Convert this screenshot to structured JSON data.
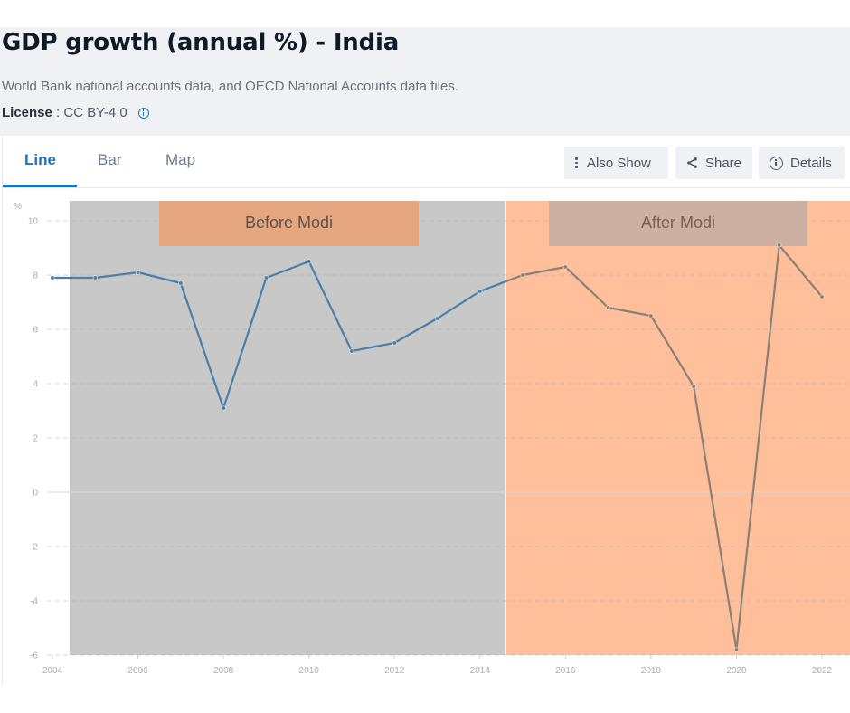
{
  "header": {
    "title": "GDP growth (annual %) - India",
    "source": "World Bank national accounts data, and OECD National Accounts data files.",
    "license_label": "License",
    "license_sep": " : ",
    "license_value": "CC BY-4.0",
    "license_icon": "info-icon"
  },
  "tabs": [
    {
      "label": "Line",
      "active": true
    },
    {
      "label": "Bar",
      "active": false
    },
    {
      "label": "Map",
      "active": false
    }
  ],
  "actions": {
    "also_show": {
      "label": "Also Show",
      "icon": "kebab-icon"
    },
    "share": {
      "label": "Share",
      "icon": "share-icon"
    },
    "details": {
      "label": "Details",
      "icon": "info-icon"
    }
  },
  "colors": {
    "accent": "#1f73c1",
    "header_bg": "#f0f1f5",
    "before_region": "#c8c8c8",
    "after_region": "#febf9a",
    "before_label_bg": "#e6a680",
    "after_label_bg": "#cdb0a2",
    "line_before": "#4a7fa8",
    "line_after": "#8a8079"
  },
  "chart_data": {
    "type": "line",
    "title": "GDP growth (annual %) - India",
    "ylabel": "%",
    "xlabel": "",
    "ylim": [
      -6,
      10
    ],
    "xlim": [
      2004,
      2022
    ],
    "yticks": [
      10,
      8,
      6,
      4,
      2,
      0,
      -2,
      -4,
      -6
    ],
    "xticks": [
      2004,
      2006,
      2008,
      2010,
      2012,
      2014,
      2016,
      2018,
      2020,
      2022
    ],
    "grid": true,
    "x": [
      2004,
      2005,
      2006,
      2007,
      2008,
      2009,
      2010,
      2011,
      2012,
      2013,
      2014,
      2015,
      2016,
      2017,
      2018,
      2019,
      2020,
      2021,
      2022
    ],
    "series": [
      {
        "name": "India",
        "values": [
          7.9,
          7.9,
          8.1,
          7.7,
          3.1,
          7.9,
          8.5,
          5.2,
          5.5,
          6.4,
          7.4,
          8.0,
          8.3,
          6.8,
          6.5,
          3.9,
          -5.8,
          9.1,
          7.2
        ]
      }
    ],
    "annotations": [
      {
        "label": "Before Modi",
        "x_start": 2004.4,
        "x_end": 2014.6
      },
      {
        "label": "After Modi",
        "x_start": 2014.6,
        "x_end": 2022.7
      }
    ]
  }
}
